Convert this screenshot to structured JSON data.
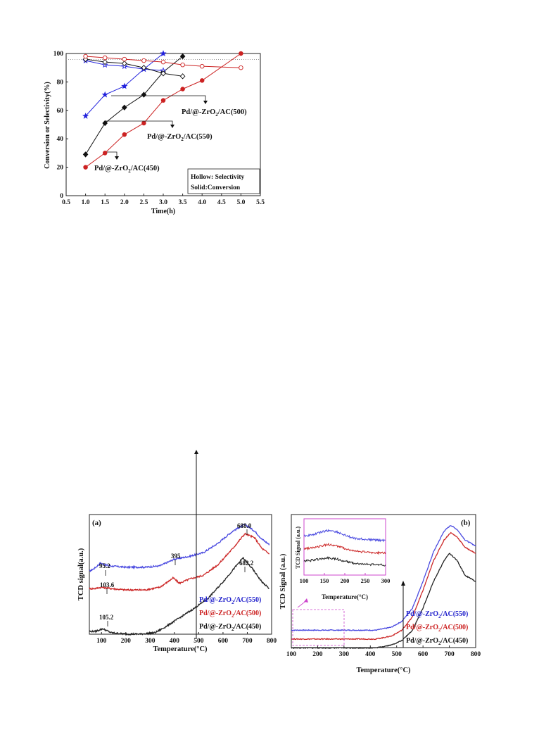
{
  "chart_data": [
    {
      "type": "line",
      "title": "",
      "xlabel": "Time(h)",
      "ylabel": "Conversion or Selectivity(%)",
      "xlim": [
        0.5,
        5.5
      ],
      "ylim": [
        0,
        100
      ],
      "xticks": [
        "0.5",
        "1.0",
        "1.5",
        "2.0",
        "2.5",
        "3.0",
        "3.5",
        "4.0",
        "4.5",
        "5.0",
        "5.5"
      ],
      "yticks": [
        "0",
        "20",
        "40",
        "60",
        "80",
        "100"
      ],
      "legend_box": [
        "Hollow: Selectivity",
        "Solid:Conversion"
      ],
      "series": [
        {
          "color": "#2222dd",
          "marker": "star",
          "fill": true,
          "x": [
            1.0,
            1.5,
            2.0,
            2.5,
            3.0
          ],
          "y": [
            56,
            71,
            77,
            89,
            100
          ]
        },
        {
          "color": "#111111",
          "marker": "diamond",
          "fill": true,
          "x": [
            1.0,
            1.5,
            2.0,
            2.5,
            3.0,
            3.5
          ],
          "y": [
            29,
            51,
            62,
            71,
            87,
            98
          ]
        },
        {
          "color": "#cc2222",
          "marker": "circle",
          "fill": true,
          "x": [
            1.0,
            1.5,
            2.0,
            2.5,
            3.0,
            3.5,
            4.0,
            5.0
          ],
          "y": [
            20,
            30,
            43,
            51,
            67,
            75,
            81,
            100
          ]
        },
        {
          "color": "#2222dd",
          "marker": "star",
          "fill": false,
          "x": [
            1.0,
            1.5,
            2.0,
            2.5,
            3.0
          ],
          "y": [
            95,
            92,
            91,
            89,
            88
          ]
        },
        {
          "color": "#111111",
          "marker": "diamond",
          "fill": false,
          "x": [
            1.0,
            1.5,
            2.0,
            2.5,
            3.0,
            3.5
          ],
          "y": [
            96,
            94,
            93,
            90,
            86,
            84
          ]
        },
        {
          "color": "#cc2222",
          "marker": "circle",
          "fill": false,
          "x": [
            1.0,
            1.5,
            2.0,
            2.5,
            3.0,
            3.5,
            4.0,
            5.0
          ],
          "y": [
            98,
            97,
            96,
            95,
            94,
            92,
            91,
            90
          ]
        }
      ],
      "annotations": {
        "l500": [
          "Pd/@-ZrO",
          "2",
          "/AC(500)"
        ],
        "l550": [
          "Pd/@-ZrO",
          "2",
          "/AC(550)"
        ],
        "l450": [
          "Pd/@-ZrO",
          "2",
          "/AC(450)"
        ]
      }
    },
    {
      "type": "line",
      "panel_label": "(a)",
      "xlabel": "Temperature(",
      "xlabel_unit": "°C)",
      "ylabel": "TCD signal(a.u.)",
      "xlim": [
        50,
        800
      ],
      "xticks": [
        "100",
        "200",
        "300",
        "400",
        "500",
        "600",
        "700",
        "800"
      ],
      "series": [
        {
          "color": "#4a4ae0",
          "x": [
            50,
            70,
            95,
            130,
            200,
            280,
            340,
            400,
            460,
            520,
            580,
            640,
            690,
            730,
            760,
            790
          ],
          "y": [
            0.65,
            0.67,
            0.71,
            0.69,
            0.68,
            0.68,
            0.69,
            0.74,
            0.76,
            0.79,
            0.86,
            0.95,
            1.0,
            0.95,
            0.89,
            0.85
          ]
        },
        {
          "color": "#cc2828",
          "x": [
            50,
            70,
            100,
            140,
            200,
            280,
            340,
            380,
            395,
            420,
            460,
            520,
            580,
            640,
            690,
            730,
            760,
            790
          ],
          "y": [
            0.52,
            0.52,
            0.53,
            0.52,
            0.51,
            0.51,
            0.53,
            0.58,
            0.6,
            0.56,
            0.59,
            0.62,
            0.7,
            0.82,
            0.93,
            0.9,
            0.82,
            0.78
          ]
        },
        {
          "color": "#222222",
          "x": [
            50,
            75,
            105,
            140,
            200,
            260,
            320,
            360,
            420,
            480,
            540,
            600,
            650,
            682,
            720,
            760,
            790
          ],
          "y": [
            0.2,
            0.2,
            0.22,
            0.19,
            0.18,
            0.18,
            0.19,
            0.23,
            0.3,
            0.37,
            0.45,
            0.57,
            0.68,
            0.75,
            0.67,
            0.57,
            0.52
          ]
        }
      ],
      "peak_labels": [
        "688.0",
        "95.2",
        "103.6",
        "395",
        "682.2",
        "105.2"
      ],
      "legend": [
        {
          "pre": "Pd/@-ZrO",
          "sub": "2",
          "post": "/AC(550)",
          "color": "#2222cc"
        },
        {
          "pre": "Pd/@-ZrO",
          "sub": "2",
          "post": "/AC(500)",
          "color": "#cc2222"
        },
        {
          "pre": "Pd/@-ZrO",
          "sub": "2",
          "post": "/AC(450)",
          "color": "#111111"
        }
      ]
    },
    {
      "type": "line",
      "panel_label": "(b)",
      "xlabel": "Temperature(°C)",
      "ylabel": "TCD Signal (a.u.)",
      "xlim": [
        100,
        800
      ],
      "xticks": [
        "100",
        "200",
        "300",
        "400",
        "500",
        "600",
        "700",
        "800"
      ],
      "series": [
        {
          "color": "#4a4ae0",
          "x": [
            100,
            300,
            420,
            480,
            520,
            560,
            600,
            640,
            680,
            705,
            730,
            760,
            800
          ],
          "y": [
            0.27,
            0.27,
            0.27,
            0.29,
            0.33,
            0.42,
            0.6,
            0.8,
            0.94,
            0.98,
            0.95,
            0.88,
            0.84
          ]
        },
        {
          "color": "#cc2828",
          "x": [
            100,
            300,
            420,
            480,
            520,
            560,
            600,
            640,
            680,
            705,
            730,
            760,
            800
          ],
          "y": [
            0.21,
            0.21,
            0.21,
            0.23,
            0.27,
            0.36,
            0.54,
            0.74,
            0.88,
            0.93,
            0.9,
            0.83,
            0.79
          ]
        },
        {
          "color": "#222222",
          "x": [
            100,
            300,
            420,
            480,
            520,
            560,
            600,
            640,
            680,
            700,
            730,
            760,
            800
          ],
          "y": [
            0.15,
            0.15,
            0.15,
            0.17,
            0.2,
            0.27,
            0.42,
            0.6,
            0.74,
            0.79,
            0.74,
            0.64,
            0.6
          ]
        }
      ],
      "inset": {
        "xlabel": "Temperature(°C)",
        "ylabel": "TCD Signal (a.u.)",
        "xticks": [
          "100",
          "150",
          "200",
          "250",
          "300"
        ]
      },
      "legend": [
        {
          "pre": "Pd/@-ZrO",
          "sub": "2",
          "post": "/AC(550)",
          "color": "#2222cc"
        },
        {
          "pre": "Pd/@-ZrO",
          "sub": "2",
          "post": "/AC(500)",
          "color": "#cc2222"
        },
        {
          "pre": "Pd/@-ZrO",
          "sub": "2",
          "post": "/AC(450)",
          "color": "#111111"
        }
      ]
    }
  ]
}
